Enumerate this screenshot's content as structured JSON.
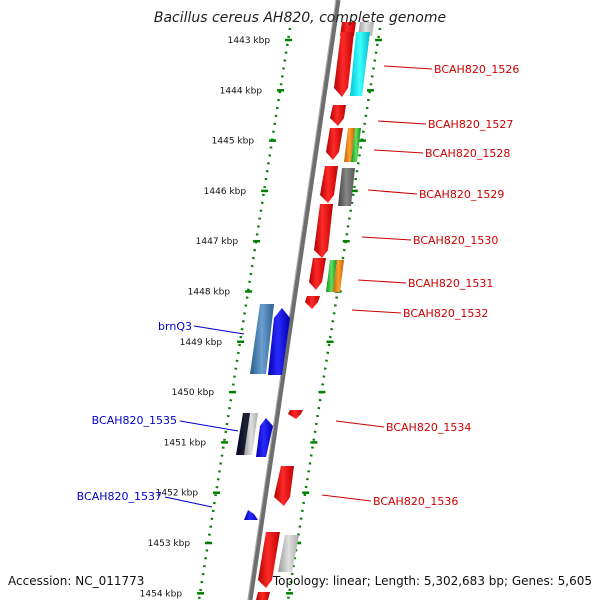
{
  "title": "Bacillus cereus AH820, complete genome",
  "footer": {
    "accession": "Accession: NC_011773",
    "summary": "Topology: linear; Length: 5,302,683 bp; Genes: 5,605"
  },
  "ticks": [
    {
      "label": "1443 kbp",
      "kbp": 1443
    },
    {
      "label": "1444 kbp",
      "kbp": 1444
    },
    {
      "label": "1445 kbp",
      "kbp": 1445
    },
    {
      "label": "1446 kbp",
      "kbp": 1446
    },
    {
      "label": "1447 kbp",
      "kbp": 1447
    },
    {
      "label": "1448 kbp",
      "kbp": 1448
    },
    {
      "label": "1449 kbp",
      "kbp": 1449
    },
    {
      "label": "1450 kbp",
      "kbp": 1450
    },
    {
      "label": "1451 kbp",
      "kbp": 1451
    },
    {
      "label": "1452 kbp",
      "kbp": 1452
    },
    {
      "label": "1453 kbp",
      "kbp": 1453
    },
    {
      "label": "1454 kbp",
      "kbp": 1454
    }
  ],
  "colors": {
    "forward_gene": "#ff0000",
    "reverse_gene": "#0000ff",
    "backbone": "#808080",
    "ruler": "#008000",
    "right_label": "#cc0000",
    "left_label": "#0000cc"
  },
  "right_labels": [
    "BCAH820_1526",
    "BCAH820_1527",
    "BCAH820_1528",
    "BCAH820_1529",
    "BCAH820_1530",
    "BCAH820_1531",
    "BCAH820_1532",
    "BCAH820_1534",
    "BCAH820_1536"
  ],
  "left_labels": [
    "brnQ3",
    "BCAH820_1535",
    "BCAH820_1537"
  ]
}
